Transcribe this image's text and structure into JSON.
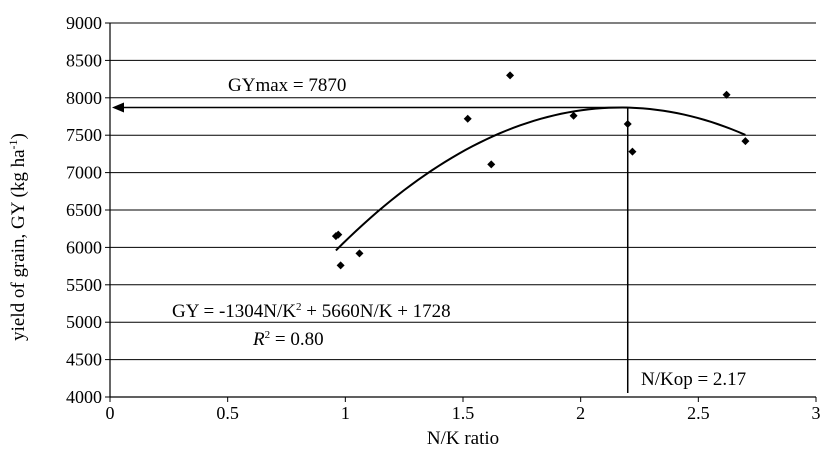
{
  "chart_data": {
    "type": "scatter",
    "xlabel": "N/K ratio",
    "ylabel": "yield of grain, GY (kg ha",
    "ylabel_sup": "-1",
    "ylabel_close": ")",
    "xlim": [
      0,
      3
    ],
    "ylim": [
      4000,
      9000
    ],
    "x_ticks": [
      0,
      0.5,
      1,
      1.5,
      2,
      2.5,
      3
    ],
    "x_tick_labels": [
      "0",
      "0.5",
      "1",
      "1.5",
      "2",
      "2.5",
      "3"
    ],
    "y_ticks": [
      4000,
      4500,
      5000,
      5500,
      6000,
      6500,
      7000,
      7500,
      8000,
      8500,
      9000
    ],
    "y_tick_labels": [
      "4000",
      "4500",
      "5000",
      "5500",
      "6000",
      "6500",
      "7000",
      "7500",
      "8000",
      "8500",
      "9000"
    ],
    "grid": "horizontal",
    "series": [
      {
        "x": [
          0.96,
          0.97,
          0.98,
          1.06,
          1.52,
          1.62,
          1.7,
          1.97,
          2.2,
          2.22,
          2.62,
          2.7
        ],
        "y": [
          6150,
          6170,
          5760,
          5920,
          7720,
          7110,
          8300,
          7760,
          7650,
          7280,
          8040,
          7420
        ]
      }
    ],
    "fit_curve": {
      "a": -1304,
      "b": 5660,
      "c": 1728,
      "x_range": [
        0.96,
        2.7
      ]
    },
    "annotations": {
      "gymax_label": "GYmax = 7870",
      "gymax_value": 7870,
      "optimum_label": "N/Kop = 2.17",
      "optimum_x": 2.2,
      "equation_text_1": "GY = -1304N/K",
      "equation_sup": "2",
      "equation_text_2": " + 5660N/K + 1728",
      "r2_label": "R",
      "r2_sup": "2",
      "r2_value_text": " = 0.80"
    }
  }
}
